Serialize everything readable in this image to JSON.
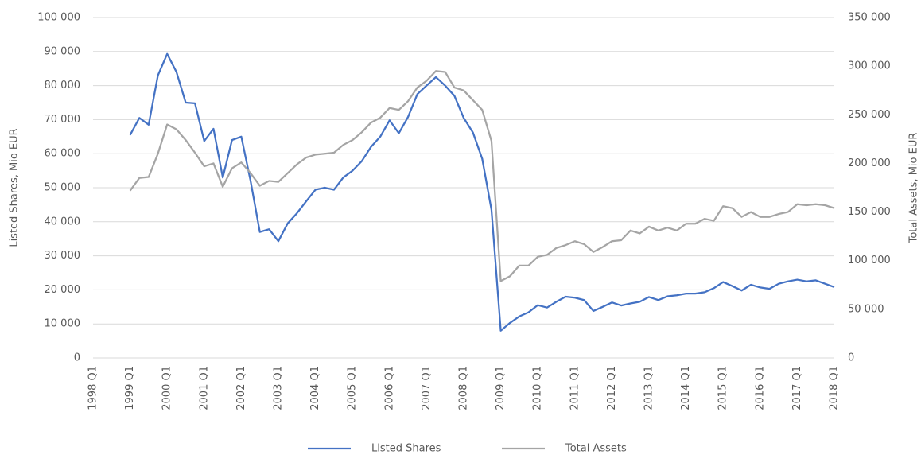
{
  "chart_data": {
    "type": "line",
    "categories": [
      "1998 Q1",
      null,
      null,
      null,
      "1999 Q1",
      null,
      null,
      null,
      "2000 Q1",
      null,
      null,
      null,
      "2001 Q1",
      null,
      null,
      null,
      "2002 Q1",
      null,
      null,
      null,
      "2003 Q1",
      null,
      null,
      null,
      "2004 Q1",
      null,
      null,
      null,
      "2005 Q1",
      null,
      null,
      null,
      "2006 Q1",
      null,
      null,
      null,
      "2007 Q1",
      null,
      null,
      null,
      "2008 Q1",
      null,
      null,
      null,
      "2009 Q1",
      null,
      null,
      null,
      "2010 Q1",
      null,
      null,
      null,
      "2011 Q1",
      null,
      null,
      null,
      "2012 Q1",
      null,
      null,
      null,
      "2013 Q1",
      null,
      null,
      null,
      "2014 Q1",
      null,
      null,
      null,
      "2015 Q1",
      null,
      null,
      null,
      "2016 Q1",
      null,
      null,
      null,
      "2017 Q1",
      null,
      null,
      null,
      "2018 Q1"
    ],
    "series": [
      {
        "name": "Listed Shares",
        "color": "#4472c4",
        "axis": "y",
        "values": [
          null,
          null,
          null,
          null,
          65500,
          70500,
          68500,
          83000,
          89300,
          84000,
          75000,
          74800,
          63700,
          67300,
          53000,
          64000,
          65000,
          52000,
          37000,
          37800,
          34300,
          39500,
          42500,
          46000,
          49400,
          50000,
          49400,
          53000,
          55000,
          57800,
          62000,
          65000,
          69800,
          66000,
          70800,
          77500,
          80000,
          82500,
          80000,
          77000,
          70500,
          66200,
          58500,
          43500,
          8000,
          10300,
          12200,
          13400,
          15500,
          14800,
          16500,
          18000,
          17700,
          17000,
          13800,
          15000,
          16300,
          15400,
          16000,
          16500,
          17900,
          17000,
          18100,
          18400,
          18900,
          18900,
          19300,
          20500,
          22300,
          21100,
          19800,
          21500,
          20700,
          20300,
          21800,
          22500,
          23000,
          22500,
          22800,
          21800,
          20800
        ]
      },
      {
        "name": "Total Assets",
        "color": "#a5a5a5",
        "axis": "y2",
        "values": [
          null,
          null,
          null,
          null,
          172000,
          185000,
          186000,
          210000,
          240000,
          235000,
          224000,
          211000,
          197000,
          200000,
          176000,
          195000,
          201000,
          190000,
          177000,
          182000,
          181000,
          190000,
          199000,
          206000,
          209000,
          210000,
          211000,
          219000,
          224000,
          232000,
          242000,
          247000,
          257000,
          255000,
          264000,
          278000,
          285000,
          295000,
          294000,
          278000,
          275000,
          265000,
          255000,
          223000,
          79000,
          84000,
          95000,
          95000,
          104000,
          106000,
          113000,
          116000,
          120000,
          117000,
          109000,
          114000,
          120000,
          121000,
          131000,
          128000,
          135000,
          131000,
          134000,
          131000,
          138000,
          138000,
          143000,
          141000,
          156000,
          154000,
          145000,
          150000,
          145000,
          145000,
          148000,
          150000,
          158000,
          157000,
          158000,
          157000,
          154000
        ]
      }
    ],
    "y_label": "Listed Shares, Mio EUR",
    "y2_label": "Total Assets, Mio EUR",
    "ylim": [
      0,
      100000
    ],
    "yticks": [
      0,
      {
        "value": 10000,
        "label": "10 000"
      },
      {
        "value": 20000,
        "label": "20 000"
      },
      {
        "value": 30000,
        "label": "30 000"
      },
      {
        "value": 40000,
        "label": "40 000"
      },
      {
        "value": 50000,
        "label": "50 000"
      },
      {
        "value": 60000,
        "label": "60 000"
      },
      {
        "value": 70000,
        "label": "70 000"
      },
      {
        "value": 80000,
        "label": "80 000"
      },
      {
        "value": 90000,
        "label": "90 000"
      },
      {
        "value": 100000,
        "label": "100 000"
      }
    ],
    "y2lim": [
      0,
      350000
    ],
    "y2ticks": [
      0,
      {
        "value": 50000,
        "label": "50 000"
      },
      {
        "value": 100000,
        "label": "100 000"
      },
      {
        "value": 150000,
        "label": "150 000"
      },
      {
        "value": 200000,
        "label": "200 000"
      },
      {
        "value": 250000,
        "label": "250 000"
      },
      {
        "value": 300000,
        "label": "300 000"
      },
      {
        "value": 350000,
        "label": "350 000"
      }
    ],
    "grid": true,
    "legend": "bottom"
  }
}
